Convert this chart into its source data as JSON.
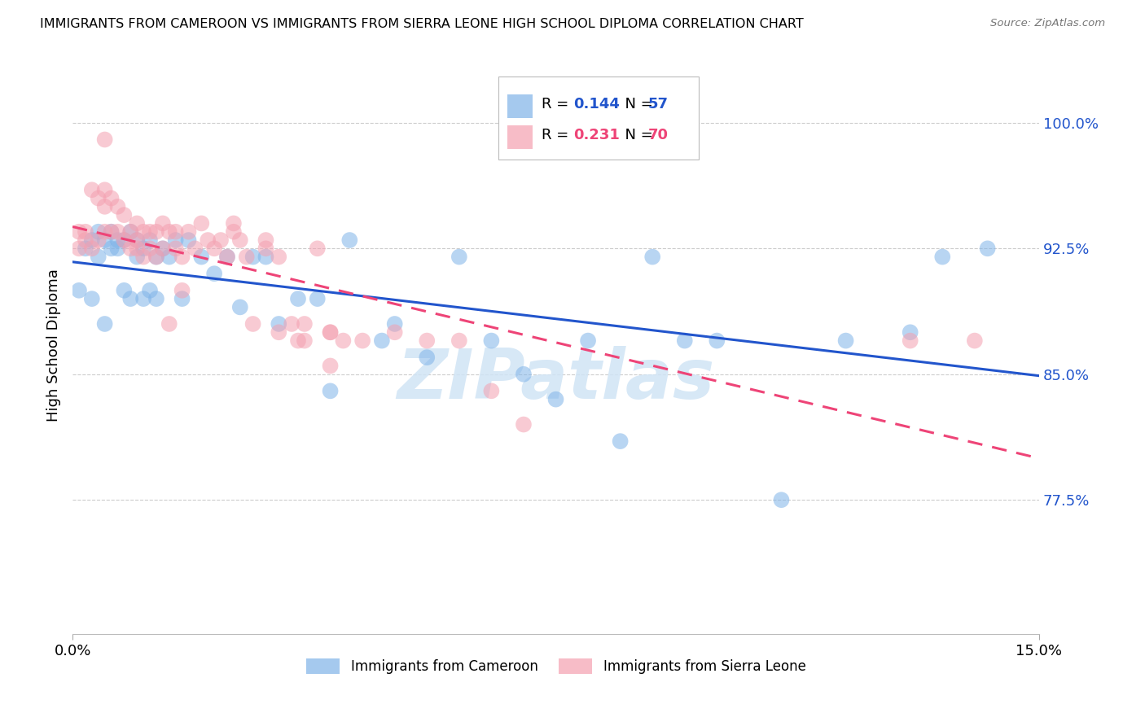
{
  "title": "IMMIGRANTS FROM CAMEROON VS IMMIGRANTS FROM SIERRA LEONE HIGH SCHOOL DIPLOMA CORRELATION CHART",
  "source": "Source: ZipAtlas.com",
  "ylabel": "High School Diploma",
  "ytick_labels": [
    "100.0%",
    "92.5%",
    "85.0%",
    "77.5%"
  ],
  "ytick_values": [
    1.0,
    0.925,
    0.85,
    0.775
  ],
  "xlim": [
    0.0,
    0.15
  ],
  "ylim": [
    0.695,
    1.04
  ],
  "cameroon_color": "#7fb3e8",
  "sierra_leone_color": "#f4a0b0",
  "cameroon_line_color": "#2255cc",
  "sierra_leone_line_color": "#ee4477",
  "watermark_text": "ZIPatlas",
  "watermark_color": "#d0e4f5",
  "legend_r_cam": "0.144",
  "legend_n_cam": "57",
  "legend_r_sl": "0.231",
  "legend_n_sl": "70",
  "cam_x": [
    0.001,
    0.002,
    0.003,
    0.003,
    0.004,
    0.004,
    0.005,
    0.005,
    0.006,
    0.006,
    0.007,
    0.007,
    0.008,
    0.008,
    0.009,
    0.009,
    0.01,
    0.01,
    0.011,
    0.011,
    0.012,
    0.012,
    0.013,
    0.013,
    0.014,
    0.015,
    0.016,
    0.017,
    0.018,
    0.02,
    0.022,
    0.024,
    0.026,
    0.028,
    0.03,
    0.032,
    0.035,
    0.038,
    0.04,
    0.043,
    0.048,
    0.05,
    0.055,
    0.06,
    0.065,
    0.07,
    0.075,
    0.08,
    0.085,
    0.09,
    0.095,
    0.1,
    0.11,
    0.12,
    0.13,
    0.135,
    0.142
  ],
  "cam_y": [
    0.9,
    0.925,
    0.93,
    0.895,
    0.935,
    0.92,
    0.93,
    0.88,
    0.935,
    0.925,
    0.93,
    0.925,
    0.93,
    0.9,
    0.935,
    0.895,
    0.92,
    0.93,
    0.925,
    0.895,
    0.93,
    0.9,
    0.92,
    0.895,
    0.925,
    0.92,
    0.93,
    0.895,
    0.93,
    0.92,
    0.91,
    0.92,
    0.89,
    0.92,
    0.92,
    0.88,
    0.895,
    0.895,
    0.84,
    0.93,
    0.87,
    0.88,
    0.86,
    0.92,
    0.87,
    0.85,
    0.835,
    0.87,
    0.81,
    0.92,
    0.87,
    0.87,
    0.775,
    0.87,
    0.875,
    0.92,
    0.925
  ],
  "sl_x": [
    0.001,
    0.001,
    0.002,
    0.002,
    0.003,
    0.003,
    0.004,
    0.004,
    0.005,
    0.005,
    0.005,
    0.006,
    0.006,
    0.007,
    0.007,
    0.008,
    0.008,
    0.009,
    0.009,
    0.01,
    0.01,
    0.01,
    0.011,
    0.011,
    0.012,
    0.012,
    0.013,
    0.013,
    0.014,
    0.014,
    0.015,
    0.015,
    0.016,
    0.016,
    0.017,
    0.017,
    0.018,
    0.019,
    0.02,
    0.021,
    0.022,
    0.023,
    0.024,
    0.025,
    0.026,
    0.027,
    0.028,
    0.03,
    0.032,
    0.034,
    0.036,
    0.038,
    0.04,
    0.042,
    0.025,
    0.03,
    0.035,
    0.04,
    0.045,
    0.05,
    0.055,
    0.06,
    0.065,
    0.07,
    0.032,
    0.036,
    0.04,
    0.13,
    0.14,
    0.005
  ],
  "sl_y": [
    0.935,
    0.925,
    0.93,
    0.935,
    0.96,
    0.925,
    0.955,
    0.93,
    0.96,
    0.935,
    0.95,
    0.955,
    0.935,
    0.95,
    0.935,
    0.945,
    0.93,
    0.935,
    0.925,
    0.94,
    0.93,
    0.925,
    0.935,
    0.92,
    0.935,
    0.925,
    0.935,
    0.92,
    0.94,
    0.925,
    0.935,
    0.88,
    0.935,
    0.925,
    0.92,
    0.9,
    0.935,
    0.925,
    0.94,
    0.93,
    0.925,
    0.93,
    0.92,
    0.935,
    0.93,
    0.92,
    0.88,
    0.93,
    0.92,
    0.88,
    0.88,
    0.925,
    0.855,
    0.87,
    0.94,
    0.925,
    0.87,
    0.875,
    0.87,
    0.875,
    0.87,
    0.87,
    0.84,
    0.82,
    0.875,
    0.87,
    0.875,
    0.87,
    0.87,
    0.99
  ]
}
